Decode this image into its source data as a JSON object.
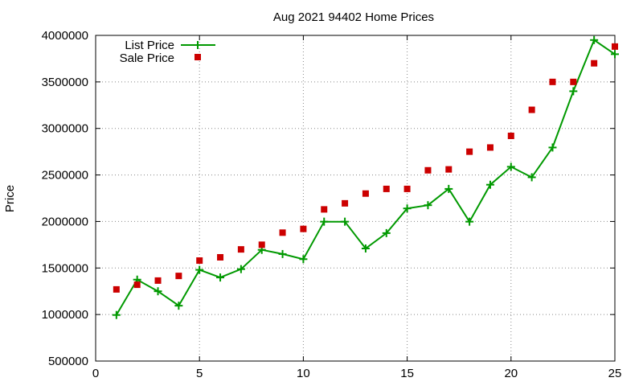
{
  "chart_data": {
    "type": "line",
    "title": "Aug 2021 94402 Home Prices",
    "xlabel": "",
    "ylabel": "Price",
    "xlim": [
      0,
      25
    ],
    "ylim": [
      500000,
      4000000
    ],
    "x_ticks": [
      "0",
      "5",
      "10",
      "15",
      "20",
      "25"
    ],
    "y_ticks": [
      "500000",
      "1000000",
      "1500000",
      "2000000",
      "2500000",
      "3000000",
      "3500000",
      "4000000"
    ],
    "grid": true,
    "legend_position": "top-left",
    "series": [
      {
        "name": "List Price",
        "style": "line+cross",
        "color": "#009900",
        "x": [
          1,
          2,
          3,
          4,
          5,
          6,
          7,
          8,
          9,
          10,
          11,
          12,
          13,
          14,
          15,
          16,
          17,
          18,
          19,
          20,
          21,
          22,
          23,
          24,
          25
        ],
        "y": [
          995000,
          1375000,
          1250000,
          1095000,
          1480000,
          1398000,
          1488000,
          1695000,
          1650000,
          1595000,
          1998000,
          1998000,
          1710000,
          1875000,
          2140000,
          2175000,
          2350000,
          1998000,
          2395000,
          2588000,
          2475000,
          2795000,
          3400000,
          3950000,
          3798000
        ]
      },
      {
        "name": "Sale Price",
        "style": "square-points",
        "color": "#cc0000",
        "x": [
          1,
          2,
          3,
          4,
          5,
          6,
          7,
          8,
          9,
          10,
          11,
          12,
          13,
          14,
          15,
          16,
          17,
          18,
          19,
          20,
          21,
          22,
          23,
          24,
          25
        ],
        "y": [
          1270000,
          1320000,
          1365000,
          1415000,
          1580000,
          1615000,
          1700000,
          1750000,
          1880000,
          1920000,
          2130000,
          2195000,
          2300000,
          2350000,
          2350000,
          2550000,
          2560000,
          2750000,
          2795000,
          2920000,
          3200000,
          3500000,
          3500000,
          3700000,
          3880000
        ]
      }
    ]
  }
}
